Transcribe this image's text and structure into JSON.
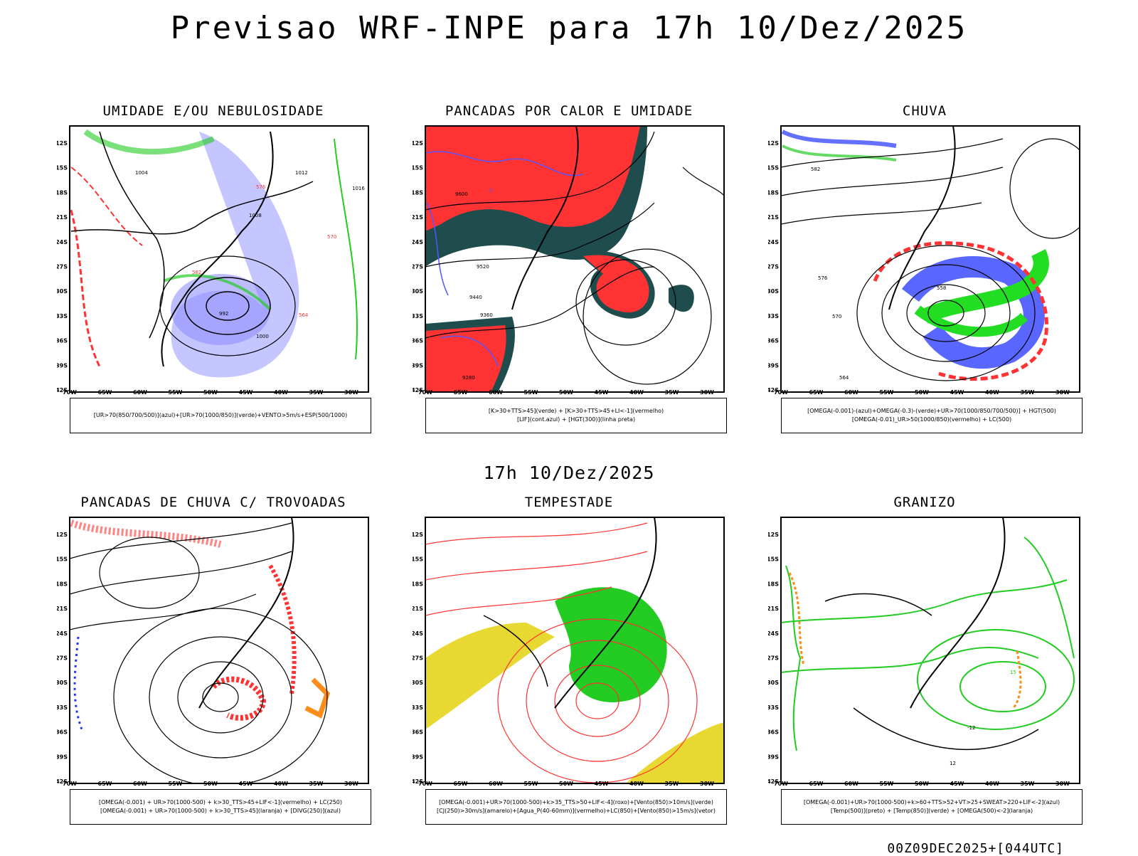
{
  "title": "Previsao WRF-INPE  para 17h 10/Dez/2025",
  "mid_title": "17h 10/Dez/2025",
  "footer": "00Z09DEC2025+[044UTC]",
  "lat_labels": [
    "12S",
    "15S",
    "18S",
    "21S",
    "24S",
    "27S",
    "30S",
    "33S",
    "36S",
    "39S",
    "42S"
  ],
  "lon_labels": [
    "70W",
    "65W",
    "60W",
    "55W",
    "50W",
    "45W",
    "40W",
    "35W",
    "30W"
  ],
  "colors": {
    "blue": "#7b7bff",
    "green": "#22cc22",
    "red": "#ff3333",
    "darkgreen": "#1f4d4d",
    "yellow": "#e8d832",
    "orange": "#ff8c1a"
  },
  "panels": [
    {
      "title": "UMIDADE E/OU NEBULOSIDADE",
      "legend": [
        "[UR>70(850/700/500)](azul)+[UR>70(1000/850)](verde)+VENTO>5m/s+ESP(500/1000)"
      ],
      "labels": [
        "1004",
        "1012",
        "1016",
        "1008",
        "576",
        "582",
        "570",
        "564",
        "1000",
        "992"
      ]
    },
    {
      "title": "PANCADAS POR CALOR E UMIDADE",
      "legend": [
        "[K>30+TTS>45](verde) + [K>30+TTS>45+LI<-1](vermelho)",
        "[LIF](cont.azul) + [HGT(300)](linha preta)"
      ],
      "labels": [
        "9600",
        "9520",
        "9440",
        "9360",
        "9280",
        "-3"
      ]
    },
    {
      "title": "CHUVA",
      "legend": [
        "[OMEGA(-0.001)-(azul)+OMEGA(-0.3)-(verde)+UR>70(1000/850/700/500)] + HGT(500)",
        "[OMEGA(-0.01)_UR>50(1000/850)(vermelho) + LC(500)"
      ],
      "labels": [
        "582",
        "576",
        "570",
        "564",
        "558"
      ]
    },
    {
      "title": "PANCADAS DE CHUVA C/ TROVOADAS",
      "legend": [
        "[OMEGA(-0.001) + UR>70(1000-500) + k>30_TTS>45+LIF<-1](vermelho) + LC(250)",
        "[OMEGA(-0.001) + UR>70(1000-500) + k>30_TTS>45](laranja) + [DIVG(250)](azul)"
      ],
      "labels": []
    },
    {
      "title": "TEMPESTADE",
      "legend": [
        "[OMEGA(-0.001)+UR>70(1000-500)+k>35_TTS>50+LIF<-4](roxo)+[Vento(850)>10m/s](verde)",
        "[CJ(250)>30m/s](amarelo)+[Agua_P(40-60mm)](vermelho)+LC(850)+[Vento(850)>15m/s](vetor)"
      ],
      "labels": []
    },
    {
      "title": "GRANIZO",
      "legend": [
        "[OMEGA(-0.001)+UR>70(1000-500)+k>60+TTS>52+VT>25+SWEAT>220+LIF<-2](azul)",
        "[Temp(500)](preto) + [Temp(850)](verde) + [OMEGA(500)<-2](laranja)"
      ],
      "labels": [
        "-12",
        "12",
        "15"
      ]
    }
  ]
}
